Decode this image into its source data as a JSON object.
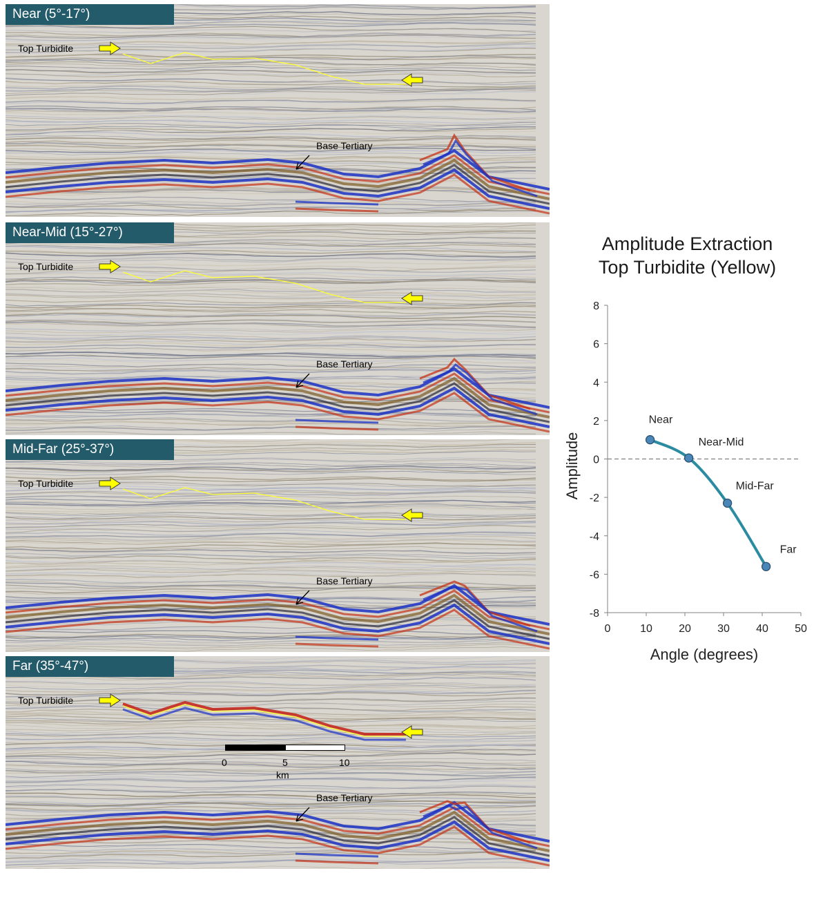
{
  "panels": [
    {
      "label": "Near (5°-17°)",
      "top_label": "Top Turbidite",
      "base_label": "Base Tertiary",
      "amp": 1.0
    },
    {
      "label": "Near-Mid (15°-27°)",
      "top_label": "Top Turbidite",
      "base_label": "Base Tertiary",
      "amp": 0.0
    },
    {
      "label": "Mid-Far (25°-37°)",
      "top_label": "Top Turbidite",
      "base_label": "Base Tertiary",
      "amp": -2.3
    },
    {
      "label": "Far (35°-47°)",
      "top_label": "Top Turbidite",
      "base_label": "Base Tertiary",
      "amp": -5.6
    }
  ],
  "scale_bar": {
    "ticks": [
      "0",
      "5",
      "10"
    ],
    "unit": "km"
  },
  "colors": {
    "label_bg": "#245b6b",
    "horizon": "#ffff33",
    "arrow": "#ffff00",
    "curve": "#2b8ba1",
    "marker": "#4a86b8"
  },
  "chart_data": {
    "type": "line",
    "title": "Amplitude Extraction\nTop Turbidite (Yellow)",
    "xlabel": "Angle (degrees)",
    "ylabel": "Amplitude",
    "xlim": [
      0,
      50
    ],
    "ylim": [
      -8,
      8
    ],
    "xticks": [
      0,
      10,
      20,
      30,
      40,
      50
    ],
    "yticks": [
      -8,
      -6,
      -4,
      -2,
      0,
      2,
      4,
      6,
      8
    ],
    "zero_line": "dashed",
    "grid": false,
    "series": [
      {
        "points": [
          {
            "x": 11,
            "y": 1.0,
            "label": "Near"
          },
          {
            "x": 21,
            "y": 0.05,
            "label": "Near-Mid"
          },
          {
            "x": 31,
            "y": -2.3,
            "label": "Mid-Far"
          },
          {
            "x": 41,
            "y": -5.6,
            "label": "Far"
          }
        ]
      }
    ]
  }
}
